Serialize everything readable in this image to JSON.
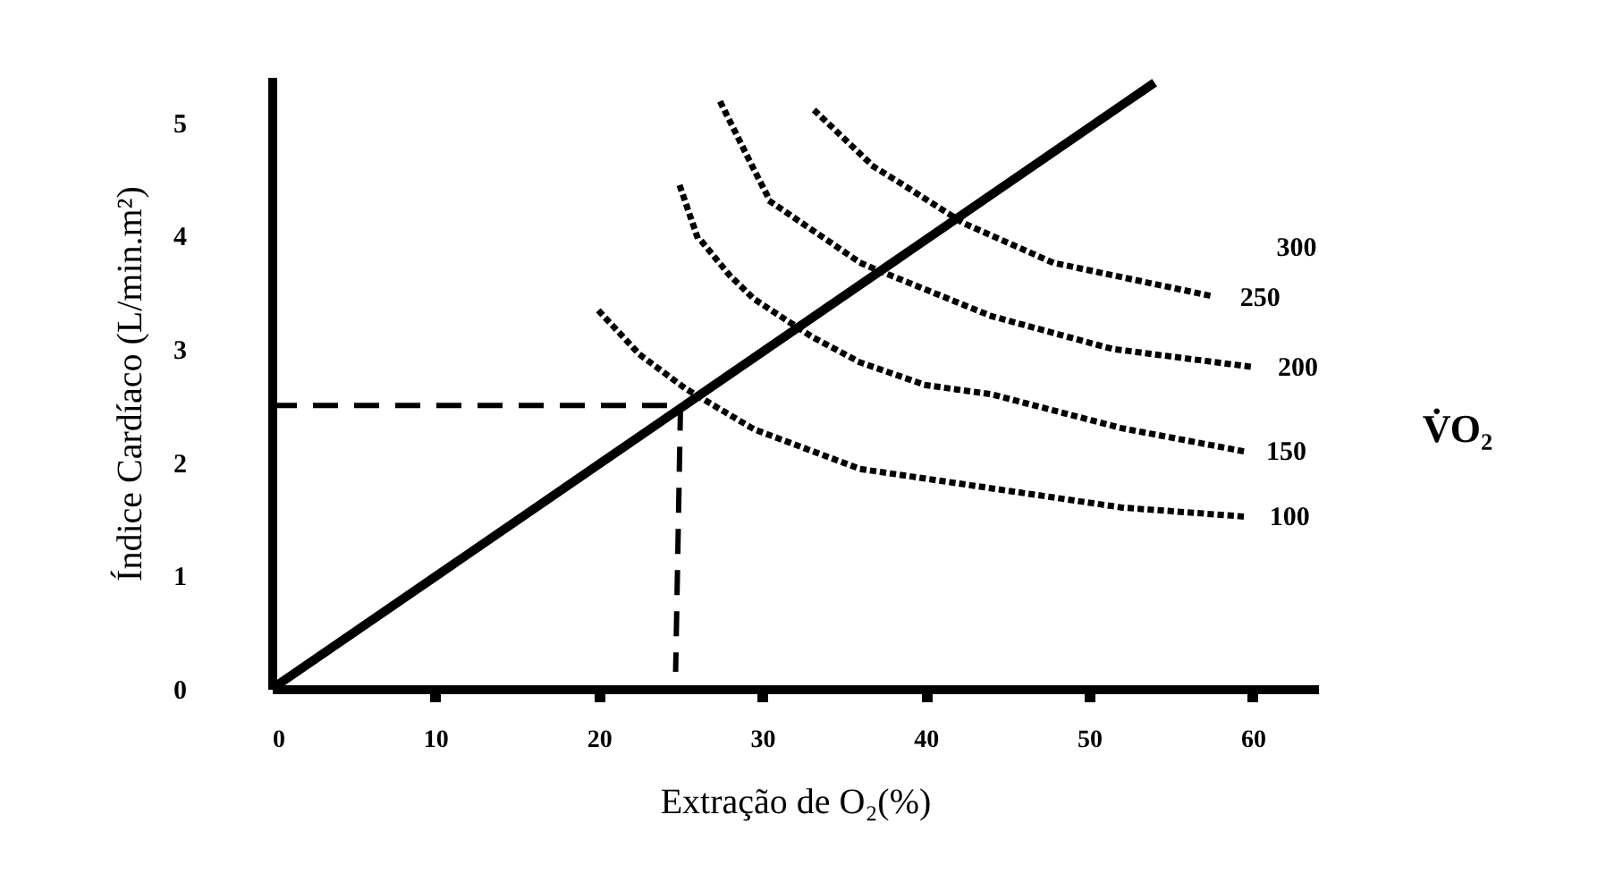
{
  "chart_data": {
    "type": "line",
    "xlabel": "Extração de O₂(%)",
    "ylabel": "Índice Cardíaco (L/min.m²)",
    "xlim": [
      0,
      64
    ],
    "ylim": [
      0,
      5.4
    ],
    "xticks": [
      0,
      10,
      20,
      30,
      40,
      50,
      60
    ],
    "yticks": [
      0,
      1,
      2,
      3,
      4,
      5
    ],
    "grid": false,
    "marker": "none",
    "annotations": [
      "300",
      "V̇O₂"
    ],
    "series": [
      {
        "color": "#000000",
        "line_style": "solid",
        "x": [
          0,
          54
        ],
        "values": [
          0,
          5.35
        ]
      },
      {
        "color": "#000000",
        "line_style": "dashed",
        "x": [
          0,
          25
        ],
        "values": [
          2.5,
          2.5
        ]
      },
      {
        "color": "#000000",
        "line_style": "dashed",
        "x": [
          25,
          24.7
        ],
        "values": [
          2.5,
          0.15
        ]
      },
      {
        "name": "100",
        "color": "#000000",
        "line_style": "dotted",
        "x": [
          20.1,
          22.5,
          25.3,
          29.5,
          36,
          44,
          52,
          59.5
        ],
        "values": [
          3.32,
          2.95,
          2.65,
          2.29,
          1.94,
          1.77,
          1.6,
          1.52
        ]
      },
      {
        "name": "150",
        "color": "#000000",
        "line_style": "dotted",
        "x": [
          25,
          26,
          28,
          29.5,
          33,
          36,
          40,
          44,
          52,
          59.3
        ],
        "values": [
          4.42,
          4.0,
          3.65,
          3.44,
          3.11,
          2.88,
          2.68,
          2.6,
          2.3,
          2.1
        ]
      },
      {
        "name": "200",
        "color": "#000000",
        "line_style": "dotted",
        "x": [
          27.5,
          29.5,
          30.5,
          36,
          36.8,
          44,
          51.4,
          60
        ],
        "values": [
          5.16,
          4.58,
          4.3,
          3.76,
          3.71,
          3.29,
          3.0,
          2.84
        ]
      },
      {
        "name": "250",
        "color": "#000000",
        "line_style": "dotted",
        "x": [
          33.3,
          36.8,
          38.6,
          42.3,
          47.8,
          57.7
        ],
        "values": [
          5.09,
          4.61,
          4.45,
          4.11,
          3.76,
          3.46
        ]
      }
    ]
  }
}
